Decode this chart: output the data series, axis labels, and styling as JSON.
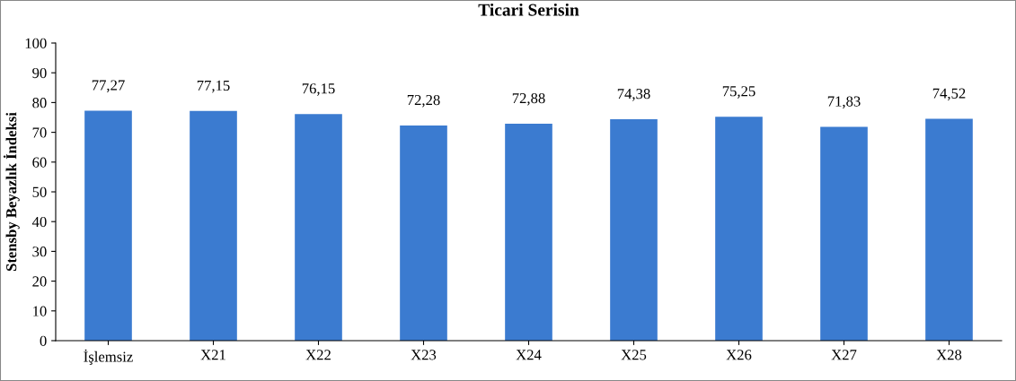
{
  "chart_data": {
    "type": "bar",
    "title": "Ticari Serisin",
    "ylabel": "Stensby Beyazlık İndeksi",
    "categories": [
      "İşlemsiz",
      "X21",
      "X22",
      "X23",
      "X24",
      "X25",
      "X26",
      "X27",
      "X28"
    ],
    "values": [
      77.27,
      77.15,
      76.15,
      72.28,
      72.88,
      74.38,
      75.25,
      71.83,
      74.52
    ],
    "value_labels": [
      "77,27",
      "77,15",
      "76,15",
      "72,28",
      "72,88",
      "74,38",
      "75,25",
      "71,83",
      "74,52"
    ],
    "color": "#3b7bd0",
    "ylim": [
      0,
      100
    ],
    "yticks": [
      0,
      10,
      20,
      30,
      40,
      50,
      60,
      70,
      80,
      90,
      100
    ],
    "grid": false,
    "legend": false
  }
}
